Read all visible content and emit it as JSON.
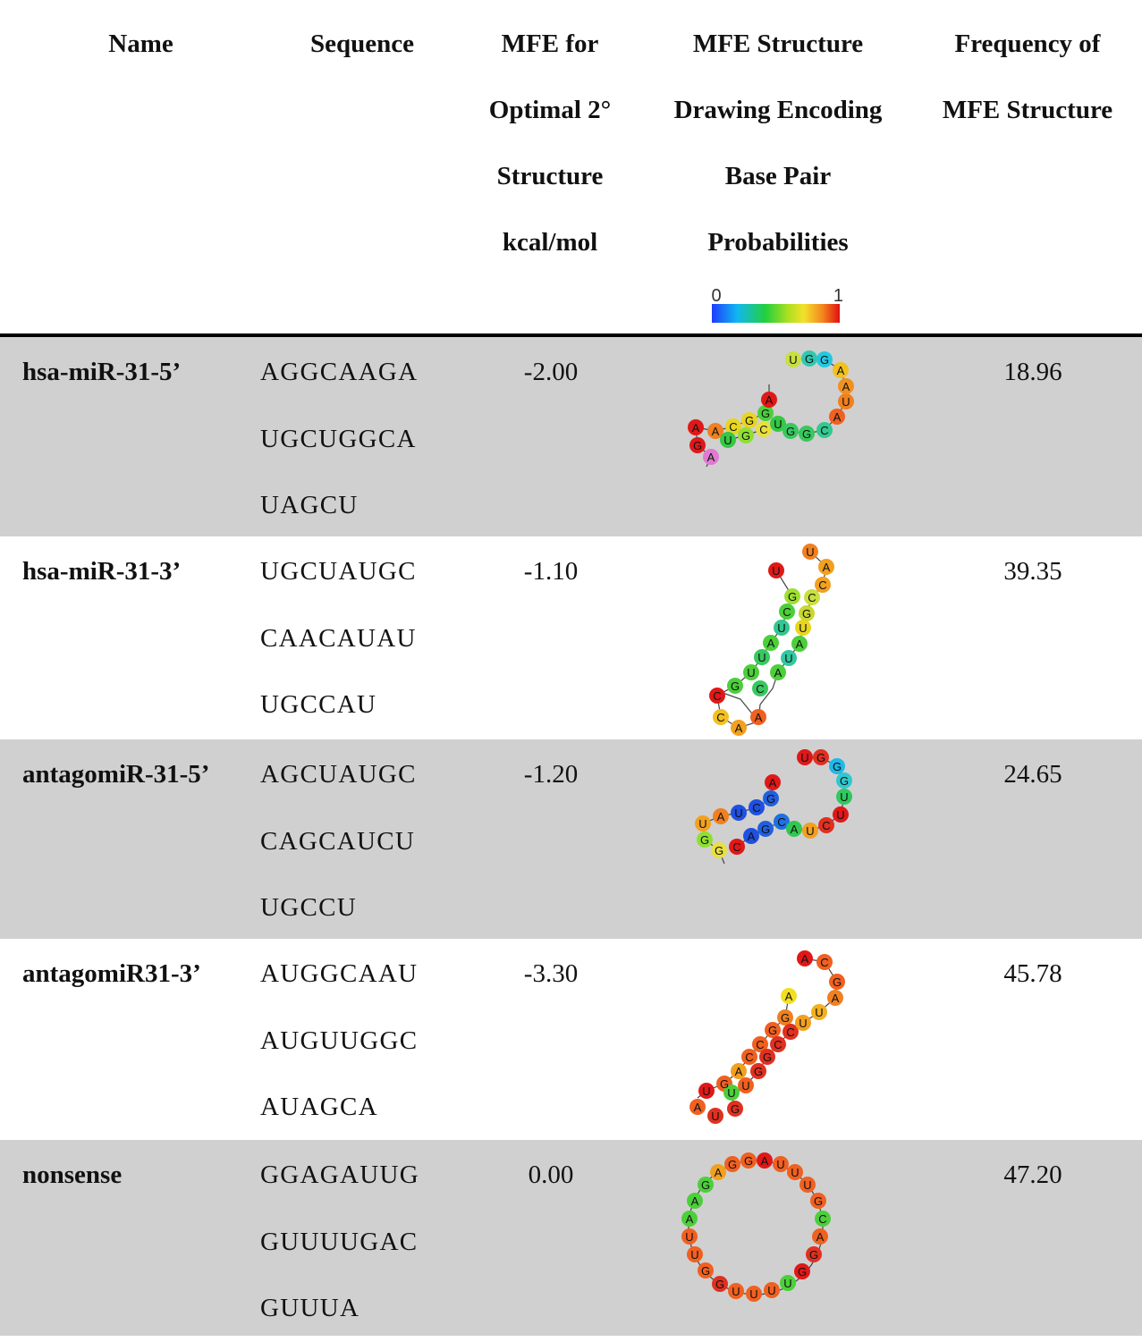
{
  "headers": {
    "name": "Name",
    "sequence": "Sequence",
    "mfe": [
      "MFE for",
      "Optimal 2°",
      "Structure",
      "kcal/mol"
    ],
    "drawing": [
      "MFE Structure",
      "Drawing Encoding",
      "Base Pair",
      "Probabilities"
    ],
    "frequency": [
      "Frequency of",
      "MFE Structure"
    ]
  },
  "scale": {
    "min_label": "0",
    "max_label": "1"
  },
  "rows": [
    {
      "name": "hsa-miR-31-5’",
      "seq": [
        "AGGCAAGA",
        "UGCUGGCA",
        "UAGCU"
      ],
      "mfe": "-2.00",
      "freq": "18.96"
    },
    {
      "name": "hsa-miR-31-3’",
      "seq": [
        "UGCUAUGC",
        "CAACAUAU",
        "UGCCAU"
      ],
      "mfe": "-1.10",
      "freq": "39.35"
    },
    {
      "name": "antagomiR-31-5’",
      "seq": [
        "AGCUAUGC",
        "CAGCAUCU",
        "UGCCU"
      ],
      "mfe": "-1.20",
      "freq": "24.65"
    },
    {
      "name": "antagomiR31-3’",
      "seq": [
        "AUGGCAAU",
        "AUGUUGGC",
        "AUAGCA"
      ],
      "mfe": "-3.30",
      "freq": "45.78"
    },
    {
      "name": "nonsense",
      "seq": [
        "GGAGAUUG",
        "GUUUUGAC",
        "GUUUA"
      ],
      "mfe": "0.00",
      "freq": "47.20"
    }
  ],
  "colors": {
    "row_shade": "#d0d0d0",
    "rule": "#000000"
  }
}
